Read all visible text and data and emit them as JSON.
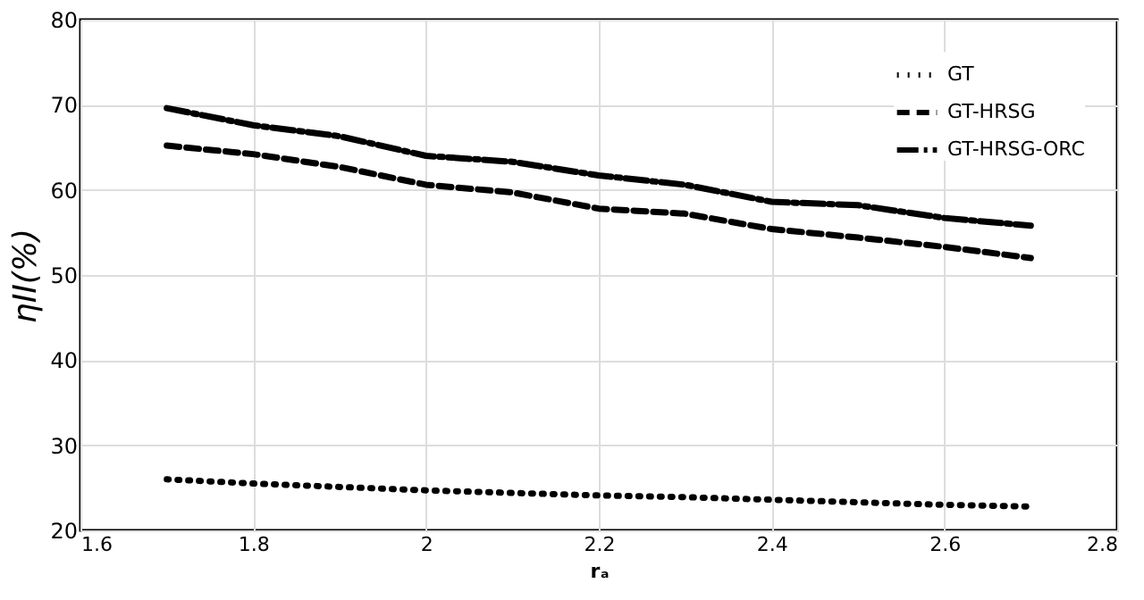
{
  "chart_data": {
    "type": "line",
    "xlabel": "rₐ",
    "ylabel": "ηII(%)",
    "x": [
      1.7,
      1.8,
      1.9,
      2.0,
      2.1,
      2.2,
      2.3,
      2.4,
      2.5,
      2.6,
      2.7
    ],
    "series": [
      {
        "name": "GT",
        "color": "#000000",
        "line_style": "dotted",
        "values": [
          26.0,
          25.5,
          25.1,
          24.7,
          24.4,
          24.1,
          23.9,
          23.6,
          23.3,
          23.0,
          22.8
        ]
      },
      {
        "name": "GT-HRSG",
        "color": "#000000",
        "line_style": "dashed",
        "values": [
          65.2,
          64.2,
          62.7,
          60.6,
          59.7,
          57.8,
          57.2,
          55.4,
          54.4,
          53.3,
          52.0
        ]
      },
      {
        "name": "GT-HRSG-ORC",
        "color": "#000000",
        "line_style": "dashdot",
        "values": [
          69.6,
          67.6,
          66.3,
          64.0,
          63.3,
          61.7,
          60.6,
          58.6,
          58.2,
          56.7,
          55.8
        ]
      }
    ],
    "xlim": [
      1.6,
      2.8
    ],
    "xticks": [
      1.6,
      1.8,
      2,
      2.2,
      2.4,
      2.6,
      2.8
    ],
    "ylim": [
      20,
      80
    ],
    "yticks": [
      20,
      30,
      40,
      50,
      60,
      70,
      80
    ],
    "grid": true,
    "legend": "top right",
    "marker": "none"
  }
}
